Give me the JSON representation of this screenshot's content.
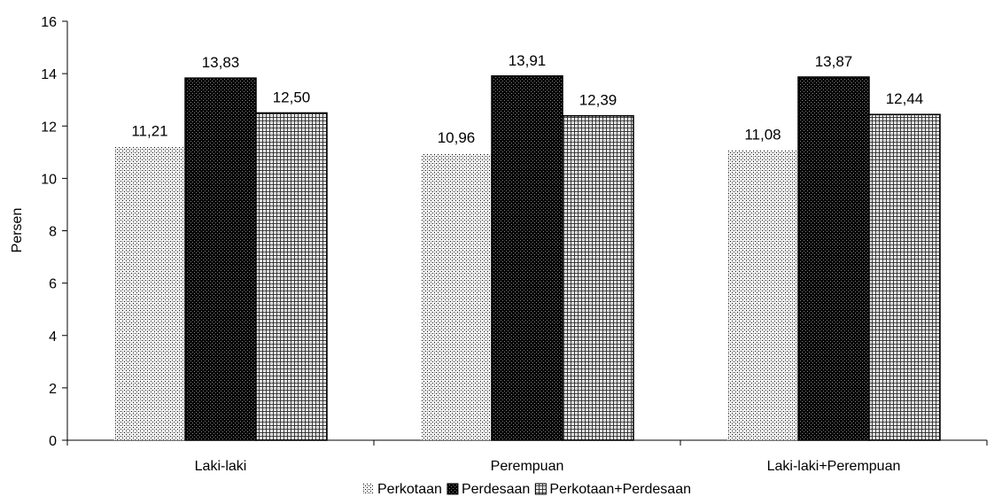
{
  "chart_data": {
    "type": "bar",
    "categories": [
      "Laki-laki",
      "Perempuan",
      "Laki-laki+Perempuan"
    ],
    "series": [
      {
        "name": "Perkotaan",
        "values": [
          11.21,
          10.96,
          11.08
        ],
        "labels": [
          "11,21",
          "10,96",
          "11,08"
        ],
        "pattern": "light-dots"
      },
      {
        "name": "Perdesaan",
        "values": [
          13.83,
          13.91,
          13.87
        ],
        "labels": [
          "13,83",
          "13,91",
          "13,87"
        ],
        "pattern": "dark-dots"
      },
      {
        "name": "Perkotaan+Perdesaan",
        "values": [
          12.5,
          12.39,
          12.44
        ],
        "labels": [
          "12,50",
          "12,39",
          "12,44"
        ],
        "pattern": "grid"
      }
    ],
    "ylabel": "Persen",
    "ylim": [
      0,
      16
    ],
    "yticks": [
      "0",
      "2",
      "4",
      "6",
      "8",
      "10",
      "12",
      "14",
      "16"
    ],
    "grid": false,
    "legend": "bottom"
  }
}
